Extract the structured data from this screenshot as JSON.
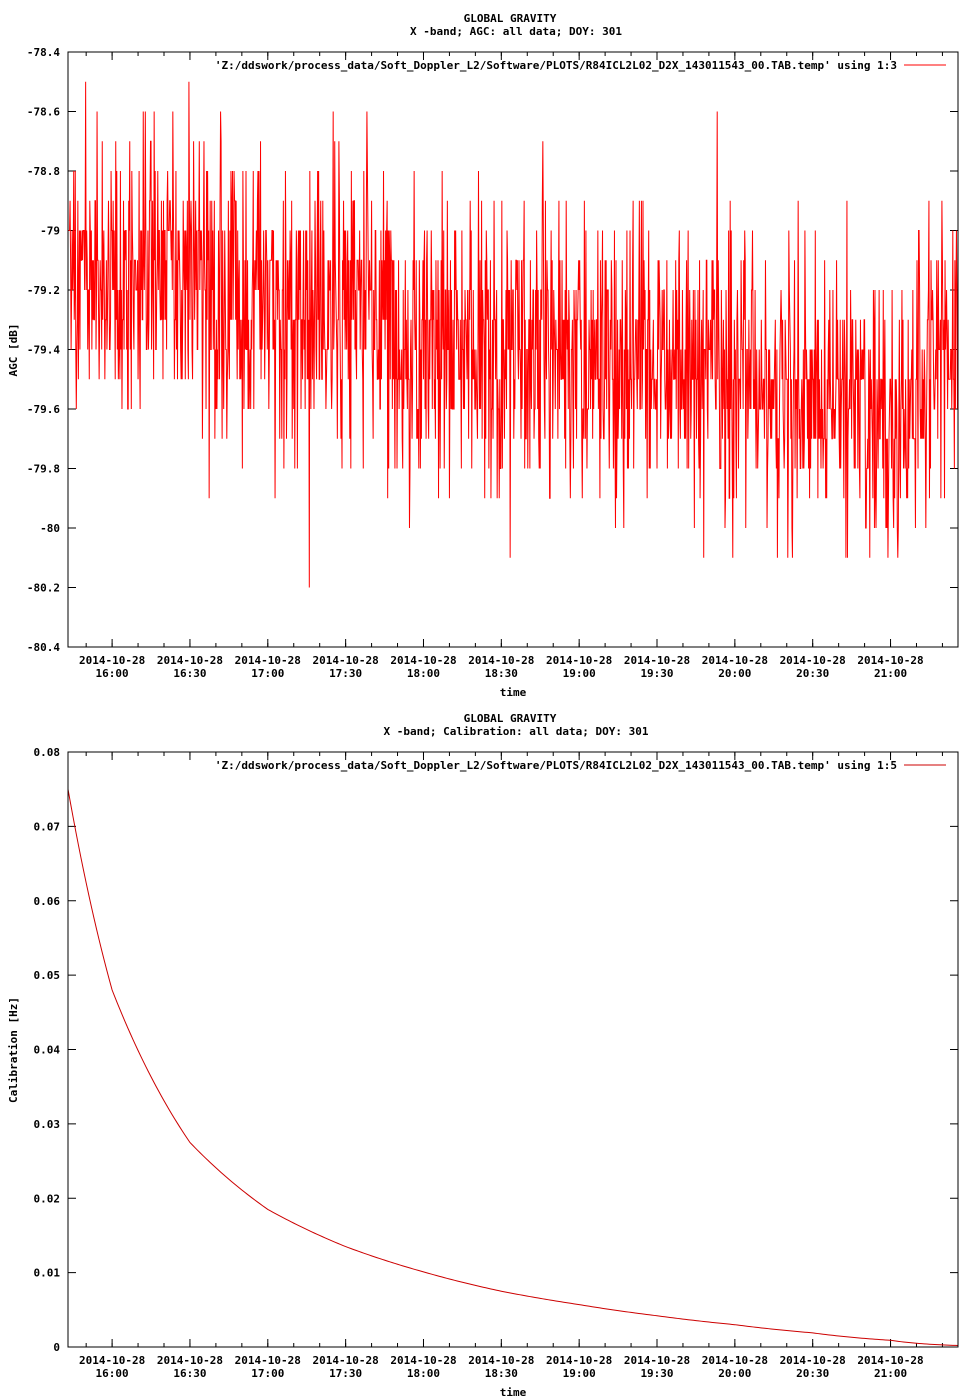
{
  "chart_data": [
    {
      "type": "line",
      "title": "GLOBAL GRAVITY",
      "subtitle": "X -band; AGC: all data; DOY: 301",
      "xlabel": "time",
      "ylabel": "AGC [dB]",
      "legend": "'Z:/ddswork/process_data/Soft_Doppler_L2/Software/PLOTS/R84ICL2L02_D2X_143011543_00.TAB.temp' using 1:3",
      "legend_position": "top-right",
      "xlim": [
        "2014-10-28 15:43",
        "2014-10-28 21:26"
      ],
      "ylim": [
        -80.4,
        -78.4
      ],
      "y_ticks": [
        "-78.4",
        "-78.6",
        "-78.8",
        "-79",
        "-79.2",
        "-79.4",
        "-79.6",
        "-79.8",
        "-80",
        "-80.2",
        "-80.4"
      ],
      "x_tick_dates": [
        "2014-10-28",
        "2014-10-28",
        "2014-10-28",
        "2014-10-28",
        "2014-10-28",
        "2014-10-28",
        "2014-10-28",
        "2014-10-28",
        "2014-10-28",
        "2014-10-28",
        "2014-10-28"
      ],
      "x_tick_times": [
        "16:00",
        "16:30",
        "17:00",
        "17:30",
        "18:00",
        "18:30",
        "19:00",
        "19:30",
        "20:00",
        "20:30",
        "21:00"
      ],
      "series": [
        {
          "color": "#ff0000",
          "trend": {
            "x": [
              "15:43",
              "16:30",
              "17:30",
              "18:30",
              "19:30",
              "20:30",
              "21:00",
              "21:26"
            ],
            "y": [
              -79.15,
              -79.15,
              -79.3,
              -79.38,
              -79.45,
              -79.52,
              -79.65,
              -79.35
            ]
          },
          "noise_amplitude_db": 0.35
        }
      ]
    },
    {
      "type": "line",
      "title": "GLOBAL GRAVITY",
      "subtitle": "X -band; Calibration: all data; DOY: 301",
      "xlabel": "time",
      "ylabel": "Calibration [Hz]",
      "legend": "'Z:/ddswork/process_data/Soft_Doppler_L2/Software/PLOTS/R84ICL2L02_D2X_143011543_00.TAB.temp' using 1:5",
      "legend_position": "top-right",
      "xlim": [
        "2014-10-28 15:43",
        "2014-10-28 21:26"
      ],
      "ylim": [
        0,
        0.08
      ],
      "y_ticks": [
        "0.08",
        "0.07",
        "0.06",
        "0.05",
        "0.04",
        "0.03",
        "0.02",
        "0.01",
        "0"
      ],
      "x_tick_dates": [
        "2014-10-28",
        "2014-10-28",
        "2014-10-28",
        "2014-10-28",
        "2014-10-28",
        "2014-10-28",
        "2014-10-28",
        "2014-10-28",
        "2014-10-28",
        "2014-10-28",
        "2014-10-28"
      ],
      "x_tick_times": [
        "16:00",
        "16:30",
        "17:00",
        "17:30",
        "18:00",
        "18:30",
        "19:00",
        "19:30",
        "20:00",
        "20:30",
        "21:00"
      ],
      "series": [
        {
          "color": "#cc0000",
          "x": [
            "15:43",
            "16:00",
            "16:30",
            "17:00",
            "17:30",
            "18:00",
            "18:30",
            "19:00",
            "19:30",
            "20:00",
            "20:30",
            "21:00",
            "21:26"
          ],
          "y": [
            0.075,
            0.048,
            0.0275,
            0.0185,
            0.0135,
            0.0101,
            0.0075,
            0.0057,
            0.0042,
            0.003,
            0.0019,
            0.0009,
            0.0002
          ]
        }
      ]
    }
  ]
}
